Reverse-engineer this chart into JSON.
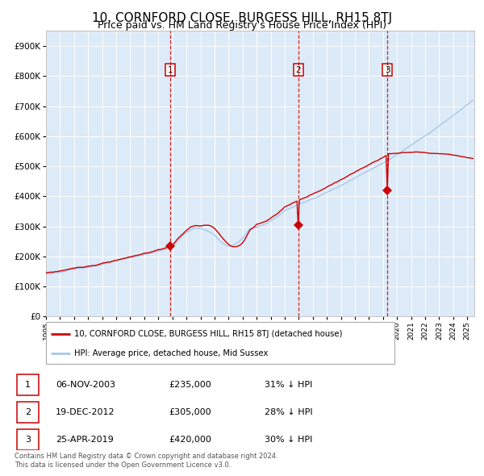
{
  "title": "10, CORNFORD CLOSE, BURGESS HILL, RH15 8TJ",
  "subtitle": "Price paid vs. HM Land Registry's House Price Index (HPI)",
  "legend_line1": "10, CORNFORD CLOSE, BURGESS HILL, RH15 8TJ (detached house)",
  "legend_line2": "HPI: Average price, detached house, Mid Sussex",
  "footnote1": "Contains HM Land Registry data © Crown copyright and database right 2024.",
  "footnote2": "This data is licensed under the Open Government Licence v3.0.",
  "transactions": [
    {
      "num": 1,
      "date": "06-NOV-2003",
      "price": 235000,
      "pct": "31%",
      "x_year": 2003.854
    },
    {
      "num": 2,
      "date": "19-DEC-2012",
      "price": 305000,
      "pct": "28%",
      "x_year": 2012.963
    },
    {
      "num": 3,
      "date": "25-APR-2019",
      "price": 420000,
      "pct": "30%",
      "x_year": 2019.316
    }
  ],
  "hpi_color": "#a8c8e8",
  "price_color": "#cc0000",
  "plot_bg": "#ddeaf7",
  "grid_color": "#ffffff",
  "ylim": [
    0,
    950000
  ],
  "yticks": [
    0,
    100000,
    200000,
    300000,
    400000,
    500000,
    600000,
    700000,
    800000,
    900000
  ],
  "xlim_start": 1995.0,
  "xlim_end": 2025.5,
  "title_fontsize": 11,
  "subtitle_fontsize": 9
}
